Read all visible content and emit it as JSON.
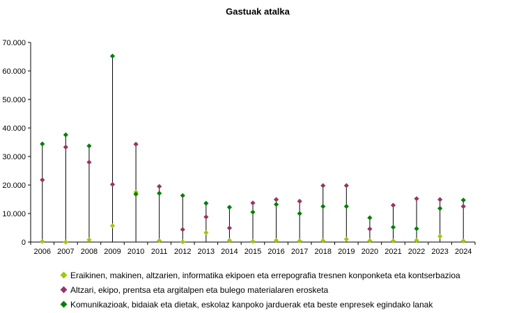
{
  "chart_data": {
    "type": "scatter",
    "title": "Gastuak atalka",
    "xlabel": "",
    "ylabel": "",
    "categories": [
      "2006",
      "2007",
      "2008",
      "2009",
      "2010",
      "2011",
      "2012",
      "2013",
      "2014",
      "2015",
      "2016",
      "2017",
      "2018",
      "2019",
      "2020",
      "2021",
      "2022",
      "2023",
      "2024"
    ],
    "ylim": [
      0,
      70000
    ],
    "yticks": [
      0,
      10000,
      20000,
      30000,
      40000,
      50000,
      60000,
      70000
    ],
    "ytick_labels": [
      "0",
      "10.000",
      "20.000",
      "30.000",
      "40.000",
      "50.000",
      "60.000",
      "70.000"
    ],
    "drop_lines": true,
    "legend_position": "bottom",
    "series": [
      {
        "name": "Eraikinen, makinen, altzarien, informatika ekipoen eta errepografia tresnen konponketa eta kontserbazioa",
        "color": "#99cc00",
        "values": [
          200,
          0,
          800,
          5700,
          17500,
          500,
          100,
          3300,
          600,
          200,
          600,
          400,
          500,
          1000,
          500,
          400,
          600,
          2000,
          400
        ]
      },
      {
        "name": "Altzari, ekipo, prentsa eta argitalpen eta bulego materialaren erosketa",
        "color": "#993366",
        "values": [
          21800,
          33300,
          28000,
          20200,
          34300,
          19500,
          4400,
          8800,
          4900,
          13700,
          14900,
          14300,
          19800,
          19800,
          4600,
          12900,
          15200,
          14900,
          12500
        ]
      },
      {
        "name": "Komunikazioak, bidaiak eta dietak, eskolaz kanpoko jarduerak eta beste enpresek egindako lanak",
        "color": "#008000",
        "values": [
          34400,
          37600,
          33700,
          65200,
          16800,
          17100,
          16300,
          13600,
          12200,
          10500,
          13200,
          10000,
          12500,
          12500,
          8500,
          5200,
          4700,
          11800,
          14700
        ]
      }
    ]
  }
}
